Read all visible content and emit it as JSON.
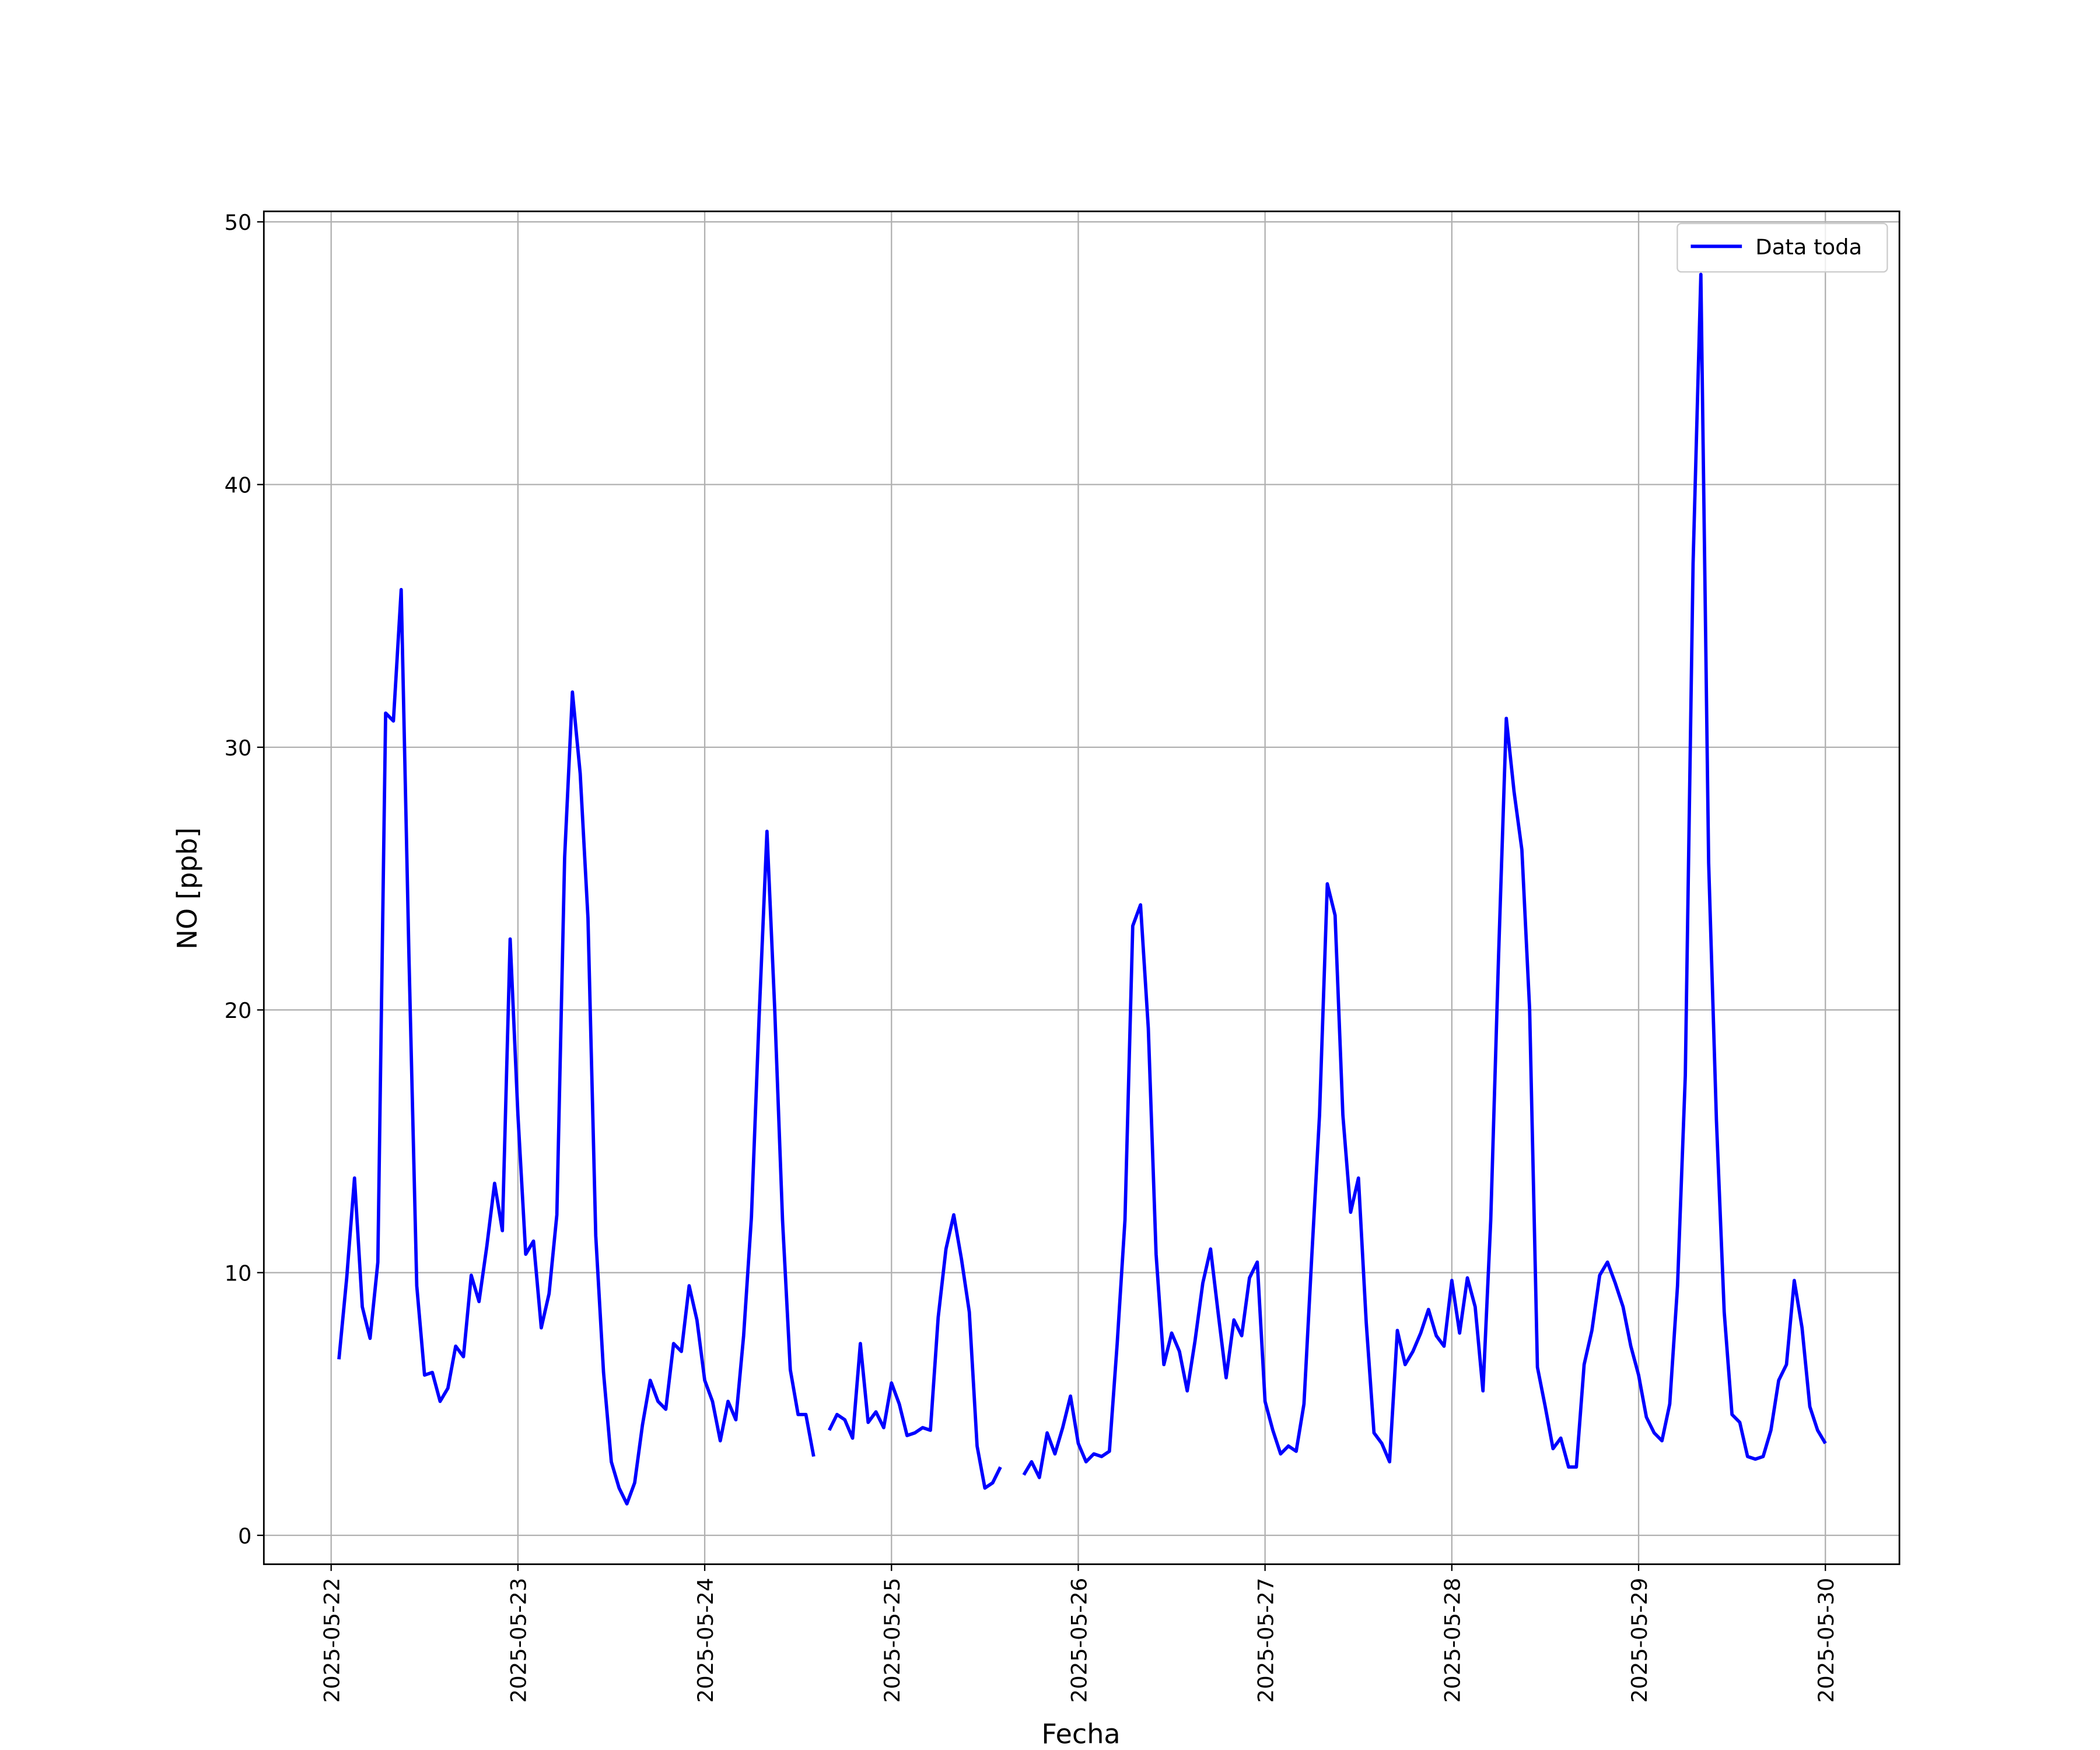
{
  "chart_data": {
    "type": "line",
    "xlabel": "Fecha",
    "ylabel": "NO [ppb]",
    "categories": [
      "2025-05-22",
      null,
      null,
      null,
      null,
      null,
      null,
      null,
      null,
      null,
      null,
      null,
      null,
      null,
      null,
      null,
      null,
      null,
      null,
      null,
      null,
      null,
      null,
      null,
      "2025-05-23",
      null,
      null,
      null,
      null,
      null,
      null,
      null,
      null,
      null,
      null,
      null,
      null,
      null,
      null,
      null,
      null,
      null,
      null,
      null,
      null,
      null,
      null,
      null,
      "2025-05-24",
      null,
      null,
      null,
      null,
      null,
      null,
      null,
      null,
      null,
      null,
      null,
      null,
      null,
      null,
      null,
      null,
      null,
      null,
      null,
      null,
      null,
      null,
      null,
      "2025-05-25",
      null,
      null,
      null,
      null,
      null,
      null,
      null,
      null,
      null,
      null,
      null,
      null,
      null,
      null,
      null,
      null,
      null,
      null,
      null,
      null,
      null,
      null,
      null,
      "2025-05-26",
      null,
      null,
      null,
      null,
      null,
      null,
      null,
      null,
      null,
      null,
      null,
      null,
      null,
      null,
      null,
      null,
      null,
      null,
      null,
      null,
      null,
      null,
      null,
      "2025-05-27",
      null,
      null,
      null,
      null,
      null,
      null,
      null,
      null,
      null,
      null,
      null,
      null,
      null,
      null,
      null,
      null,
      null,
      null,
      null,
      null,
      null,
      null,
      null,
      "2025-05-28",
      null,
      null,
      null,
      null,
      null,
      null,
      null,
      null,
      null,
      null,
      null,
      null,
      null,
      null,
      null,
      null,
      null,
      null,
      null,
      null,
      null,
      null,
      null,
      "2025-05-29",
      null,
      null,
      null,
      null,
      null,
      null,
      null,
      null,
      null,
      null,
      null,
      null,
      null,
      null,
      null,
      null,
      null,
      null,
      null,
      null,
      null,
      null,
      null,
      "2025-05-30"
    ],
    "series": [
      {
        "name": "Data toda",
        "color": "#0000ff",
        "values": [
          null,
          6.7,
          9.8,
          13.6,
          8.7,
          7.5,
          10.4,
          31.3,
          31.0,
          36.0,
          22,
          9.5,
          6.1,
          6.2,
          5.1,
          5.6,
          7.2,
          6.8,
          9.9,
          8.9,
          11,
          13.4,
          11.6,
          22.7,
          16,
          10.7,
          11.2,
          7.9,
          9.2,
          12.2,
          25.8,
          32.1,
          29,
          23.5,
          11.4,
          6.2,
          2.8,
          1.8,
          1.2,
          2.0,
          4.2,
          5.9,
          5.1,
          4.8,
          7.3,
          7.0,
          9.5,
          8.2,
          5.9,
          5.1,
          3.6,
          5.1,
          4.4,
          7.6,
          12.1,
          19.8,
          26.8,
          20,
          12,
          6.3,
          4.6,
          4.6,
          3.0,
          null,
          4.0,
          4.6,
          4.4,
          3.7,
          7.3,
          4.3,
          4.7,
          4.1,
          5.8,
          5.0,
          3.8,
          3.9,
          4.1,
          4.0,
          8.3,
          10.9,
          12.2,
          10.5,
          8.5,
          3.4,
          1.8,
          2.0,
          2.6,
          null,
          null,
          2.3,
          2.8,
          2.2,
          3.9,
          3.1,
          4.1,
          5.3,
          3.5,
          2.8,
          3.1,
          3.0,
          3.2,
          7.3,
          12,
          23.2,
          24.0,
          19.3,
          10.7,
          6.5,
          7.7,
          7.0,
          5.5,
          7.4,
          9.6,
          10.9,
          8.4,
          6.0,
          8.2,
          7.6,
          9.8,
          10.4,
          5.1,
          4.0,
          3.1,
          3.4,
          3.2,
          5.0,
          10.6,
          16,
          24.8,
          23.6,
          16,
          12.3,
          13.6,
          8.1,
          3.9,
          3.5,
          2.8,
          7.8,
          6.5,
          7.0,
          7.7,
          8.6,
          7.6,
          7.2,
          9.7,
          7.7,
          9.8,
          8.7,
          5.5,
          12,
          22,
          31.1,
          28.3,
          26.1,
          20,
          6.4,
          4.9,
          3.3,
          3.7,
          2.6,
          2.6,
          6.5,
          7.8,
          9.9,
          10.4,
          9.6,
          8.7,
          7.2,
          6.1,
          4.5,
          3.9,
          3.6,
          5.0,
          9.5,
          17.5,
          37,
          48,
          25.6,
          15.8,
          8.5,
          4.6,
          4.3,
          3.0,
          2.9,
          3.0,
          4.0,
          5.9,
          6.5,
          9.7,
          7.9,
          4.9,
          4.0,
          3.5
        ]
      }
    ],
    "ylim": [
      -1.1,
      50.4
    ],
    "yticks": [
      0,
      10,
      20,
      30,
      40,
      50
    ],
    "grid": true,
    "legend": "upper right"
  }
}
